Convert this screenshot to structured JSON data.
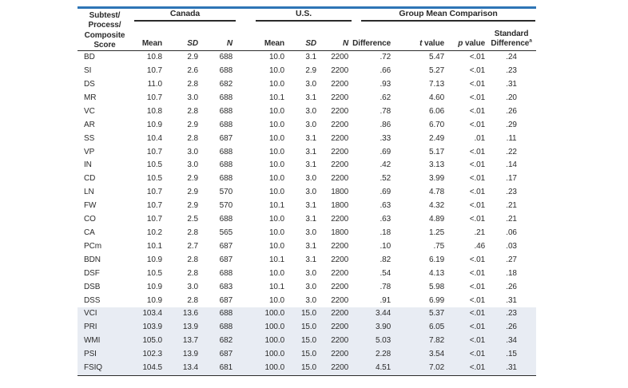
{
  "page": {
    "background": "#ffffff",
    "accent_color": "#2e75b6",
    "rule_color": "#2b2b2b",
    "shaded_row_color": "#e8ecf3",
    "text_color": "#2b2b2b"
  },
  "table": {
    "row_header": "Subtest/\nProcess/\nComposite\nScore",
    "sections": {
      "canada": "Canada",
      "us": "U.S.",
      "comparison": "Group Mean Comparison"
    },
    "columns": {
      "canada_mean": "Mean",
      "canada_sd": "SD",
      "canada_n": "N",
      "us_mean": "Mean",
      "us_sd": "SD",
      "us_n": "N",
      "difference": "Difference",
      "t_label_italic": "t",
      "t_label_rest": " value",
      "p_label_italic": "p",
      "p_label_rest": " value",
      "std_diff_line1": "Standard",
      "std_diff_line2": "Difference",
      "std_diff_superscript": "a"
    },
    "rows": [
      {
        "label": "BD",
        "c_mean": "10.8",
        "c_sd": "2.9",
        "c_n": "688",
        "u_mean": "10.0",
        "u_sd": "3.1",
        "u_n": "2200",
        "diff": ".72",
        "t": "5.47",
        "p": "<.01",
        "std_diff": ".24",
        "shaded": false
      },
      {
        "label": "SI",
        "c_mean": "10.7",
        "c_sd": "2.6",
        "c_n": "688",
        "u_mean": "10.0",
        "u_sd": "2.9",
        "u_n": "2200",
        "diff": ".66",
        "t": "5.27",
        "p": "<.01",
        "std_diff": ".23",
        "shaded": false
      },
      {
        "label": "DS",
        "c_mean": "11.0",
        "c_sd": "2.8",
        "c_n": "682",
        "u_mean": "10.0",
        "u_sd": "3.0",
        "u_n": "2200",
        "diff": ".93",
        "t": "7.13",
        "p": "<.01",
        "std_diff": ".31",
        "shaded": false
      },
      {
        "label": "MR",
        "c_mean": "10.7",
        "c_sd": "3.0",
        "c_n": "688",
        "u_mean": "10.1",
        "u_sd": "3.1",
        "u_n": "2200",
        "diff": ".62",
        "t": "4.60",
        "p": "<.01",
        "std_diff": ".20",
        "shaded": false
      },
      {
        "label": "VC",
        "c_mean": "10.8",
        "c_sd": "2.8",
        "c_n": "688",
        "u_mean": "10.0",
        "u_sd": "3.0",
        "u_n": "2200",
        "diff": ".78",
        "t": "6.06",
        "p": "<.01",
        "std_diff": ".26",
        "shaded": false
      },
      {
        "label": "AR",
        "c_mean": "10.9",
        "c_sd": "2.9",
        "c_n": "688",
        "u_mean": "10.0",
        "u_sd": "3.0",
        "u_n": "2200",
        "diff": ".86",
        "t": "6.70",
        "p": "<.01",
        "std_diff": ".29",
        "shaded": false
      },
      {
        "label": "SS",
        "c_mean": "10.4",
        "c_sd": "2.8",
        "c_n": "687",
        "u_mean": "10.0",
        "u_sd": "3.1",
        "u_n": "2200",
        "diff": ".33",
        "t": "2.49",
        "p": ".01",
        "std_diff": ".11",
        "shaded": false
      },
      {
        "label": "VP",
        "c_mean": "10.7",
        "c_sd": "3.0",
        "c_n": "688",
        "u_mean": "10.0",
        "u_sd": "3.1",
        "u_n": "2200",
        "diff": ".69",
        "t": "5.17",
        "p": "<.01",
        "std_diff": ".22",
        "shaded": false
      },
      {
        "label": "IN",
        "c_mean": "10.5",
        "c_sd": "3.0",
        "c_n": "688",
        "u_mean": "10.0",
        "u_sd": "3.1",
        "u_n": "2200",
        "diff": ".42",
        "t": "3.13",
        "p": "<.01",
        "std_diff": ".14",
        "shaded": false
      },
      {
        "label": "CD",
        "c_mean": "10.5",
        "c_sd": "2.9",
        "c_n": "688",
        "u_mean": "10.0",
        "u_sd": "3.0",
        "u_n": "2200",
        "diff": ".52",
        "t": "3.99",
        "p": "<.01",
        "std_diff": ".17",
        "shaded": false
      },
      {
        "label": "LN",
        "c_mean": "10.7",
        "c_sd": "2.9",
        "c_n": "570",
        "u_mean": "10.0",
        "u_sd": "3.0",
        "u_n": "1800",
        "diff": ".69",
        "t": "4.78",
        "p": "<.01",
        "std_diff": ".23",
        "shaded": false
      },
      {
        "label": "FW",
        "c_mean": "10.7",
        "c_sd": "2.9",
        "c_n": "570",
        "u_mean": "10.1",
        "u_sd": "3.1",
        "u_n": "1800",
        "diff": ".63",
        "t": "4.32",
        "p": "<.01",
        "std_diff": ".21",
        "shaded": false
      },
      {
        "label": "CO",
        "c_mean": "10.7",
        "c_sd": "2.5",
        "c_n": "688",
        "u_mean": "10.0",
        "u_sd": "3.1",
        "u_n": "2200",
        "diff": ".63",
        "t": "4.89",
        "p": "<.01",
        "std_diff": ".21",
        "shaded": false
      },
      {
        "label": "CA",
        "c_mean": "10.2",
        "c_sd": "2.8",
        "c_n": "565",
        "u_mean": "10.0",
        "u_sd": "3.0",
        "u_n": "1800",
        "diff": ".18",
        "t": "1.25",
        "p": ".21",
        "std_diff": ".06",
        "shaded": false
      },
      {
        "label": "PCm",
        "c_mean": "10.1",
        "c_sd": "2.7",
        "c_n": "687",
        "u_mean": "10.0",
        "u_sd": "3.1",
        "u_n": "2200",
        "diff": ".10",
        "t": ".75",
        "p": ".46",
        "std_diff": ".03",
        "shaded": false
      },
      {
        "label": "BDN",
        "c_mean": "10.9",
        "c_sd": "2.8",
        "c_n": "687",
        "u_mean": "10.1",
        "u_sd": "3.1",
        "u_n": "2200",
        "diff": ".82",
        "t": "6.19",
        "p": "<.01",
        "std_diff": ".27",
        "shaded": false
      },
      {
        "label": "DSF",
        "c_mean": "10.5",
        "c_sd": "2.8",
        "c_n": "688",
        "u_mean": "10.0",
        "u_sd": "3.0",
        "u_n": "2200",
        "diff": ".54",
        "t": "4.13",
        "p": "<.01",
        "std_diff": ".18",
        "shaded": false
      },
      {
        "label": "DSB",
        "c_mean": "10.9",
        "c_sd": "3.0",
        "c_n": "683",
        "u_mean": "10.1",
        "u_sd": "3.0",
        "u_n": "2200",
        "diff": ".78",
        "t": "5.98",
        "p": "<.01",
        "std_diff": ".26",
        "shaded": false
      },
      {
        "label": "DSS",
        "c_mean": "10.9",
        "c_sd": "2.8",
        "c_n": "687",
        "u_mean": "10.0",
        "u_sd": "3.0",
        "u_n": "2200",
        "diff": ".91",
        "t": "6.99",
        "p": "<.01",
        "std_diff": ".31",
        "shaded": false
      },
      {
        "label": "VCI",
        "c_mean": "103.4",
        "c_sd": "13.6",
        "c_n": "688",
        "u_mean": "100.0",
        "u_sd": "15.0",
        "u_n": "2200",
        "diff": "3.44",
        "t": "5.37",
        "p": "<.01",
        "std_diff": ".23",
        "shaded": true
      },
      {
        "label": "PRI",
        "c_mean": "103.9",
        "c_sd": "13.9",
        "c_n": "688",
        "u_mean": "100.0",
        "u_sd": "15.0",
        "u_n": "2200",
        "diff": "3.90",
        "t": "6.05",
        "p": "<.01",
        "std_diff": ".26",
        "shaded": true
      },
      {
        "label": "WMI",
        "c_mean": "105.0",
        "c_sd": "13.7",
        "c_n": "682",
        "u_mean": "100.0",
        "u_sd": "15.0",
        "u_n": "2200",
        "diff": "5.03",
        "t": "7.82",
        "p": "<.01",
        "std_diff": ".34",
        "shaded": true
      },
      {
        "label": "PSI",
        "c_mean": "102.3",
        "c_sd": "13.9",
        "c_n": "687",
        "u_mean": "100.0",
        "u_sd": "15.0",
        "u_n": "2200",
        "diff": "2.28",
        "t": "3.54",
        "p": "<.01",
        "std_diff": ".15",
        "shaded": true
      },
      {
        "label": "FSIQ",
        "c_mean": "104.5",
        "c_sd": "13.4",
        "c_n": "681",
        "u_mean": "100.0",
        "u_sd": "15.0",
        "u_n": "2200",
        "diff": "4.51",
        "t": "7.02",
        "p": "<.01",
        "std_diff": ".31",
        "shaded": true
      }
    ]
  }
}
